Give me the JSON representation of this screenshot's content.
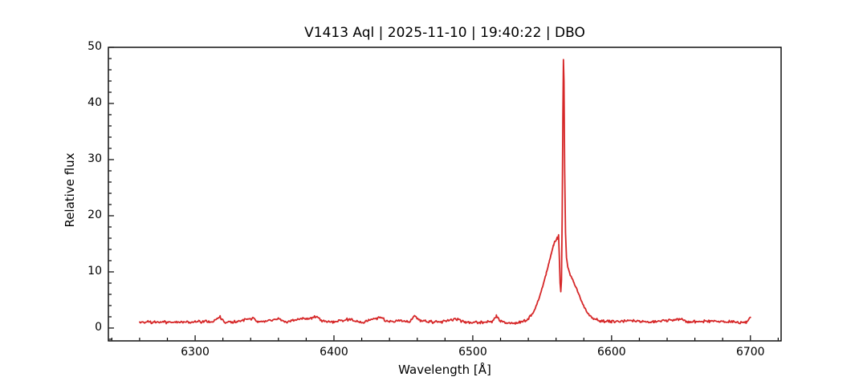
{
  "chart_data": {
    "type": "line",
    "title": "V1413 Aql | 2025-11-10 | 19:40:22 | DBO",
    "title_parts": {
      "object": "V1413 Aql",
      "date": "2025-11-10",
      "time": "19:40:22",
      "observatory": "DBO"
    },
    "xlabel": "Wavelength [Å]",
    "ylabel": "Relative flux",
    "xlim": [
      6237.5,
      6722.1
    ],
    "ylim": [
      -2.29,
      50
    ],
    "x_ticks": [
      6300,
      6400,
      6500,
      6600,
      6700
    ],
    "x_minor_step": 20,
    "y_ticks": [
      0,
      10,
      20,
      30,
      40,
      50
    ],
    "y_minor_step": 2,
    "grid": false,
    "legend": "none",
    "background_color": "#ffffff",
    "axis_color": "#000000",
    "line_color": "#d62728",
    "data_wavelength_range": [
      6260,
      6700
    ],
    "continuum_level": 1.1,
    "noise_amplitude": 0.3,
    "emission_peak": {
      "wavelength": 6565.3,
      "flux": 47.8
    },
    "broad_component_peak": {
      "wavelength": 6560.5,
      "flux": 16.3
    },
    "absorption_dip": {
      "wavelength": 6563.5,
      "flux": 6.4
    },
    "series": [
      {
        "name": "spectrum",
        "sample_step": 0.6,
        "low_noise_region": [
          6560.5,
          6567.5
        ],
        "profile_points": [
          [
            6260,
            1.1
          ],
          [
            6280,
            1.0
          ],
          [
            6300,
            1.1
          ],
          [
            6314,
            1.2
          ],
          [
            6318,
            2.0
          ],
          [
            6321,
            1.1
          ],
          [
            6330,
            1.1
          ],
          [
            6342,
            1.8
          ],
          [
            6345,
            1.1
          ],
          [
            6355,
            1.3
          ],
          [
            6360,
            1.7
          ],
          [
            6365,
            1.1
          ],
          [
            6384,
            1.8
          ],
          [
            6388,
            2.1
          ],
          [
            6391,
            1.2
          ],
          [
            6400,
            1.1
          ],
          [
            6410,
            1.5
          ],
          [
            6420,
            1.0
          ],
          [
            6434,
            2.0
          ],
          [
            6438,
            1.2
          ],
          [
            6455,
            1.2
          ],
          [
            6458,
            2.3
          ],
          [
            6462,
            1.3
          ],
          [
            6475,
            1.0
          ],
          [
            6488,
            1.6
          ],
          [
            6495,
            1.0
          ],
          [
            6505,
            1.0
          ],
          [
            6514,
            1.2
          ],
          [
            6517,
            2.2
          ],
          [
            6520,
            1.1
          ],
          [
            6528,
            0.9
          ],
          [
            6535,
            1.0
          ],
          [
            6539,
            1.4
          ],
          [
            6542,
            2.2
          ],
          [
            6545,
            3.5
          ],
          [
            6548,
            5.5
          ],
          [
            6551,
            8.0
          ],
          [
            6553,
            9.8
          ],
          [
            6555,
            11.8
          ],
          [
            6556.5,
            13.2
          ],
          [
            6558,
            14.6
          ],
          [
            6559,
            15.3
          ],
          [
            6560,
            15.6
          ],
          [
            6560.8,
            16.2
          ],
          [
            6561.3,
            15.8
          ],
          [
            6561.8,
            16.6
          ],
          [
            6562.3,
            13.0
          ],
          [
            6562.9,
            8.0
          ],
          [
            6563.4,
            6.5
          ],
          [
            6563.9,
            8.5
          ],
          [
            6564.4,
            20.0
          ],
          [
            6564.9,
            38.0
          ],
          [
            6565.3,
            47.8
          ],
          [
            6565.7,
            44.0
          ],
          [
            6566.2,
            28.0
          ],
          [
            6566.8,
            17.0
          ],
          [
            6567.5,
            12.5
          ],
          [
            6568.5,
            10.8
          ],
          [
            6570,
            9.6
          ],
          [
            6571.5,
            8.8
          ],
          [
            6573,
            8.0
          ],
          [
            6574.5,
            7.2
          ],
          [
            6576,
            6.2
          ],
          [
            6578,
            4.9
          ],
          [
            6580,
            3.9
          ],
          [
            6582,
            3.0
          ],
          [
            6584,
            2.3
          ],
          [
            6586,
            1.8
          ],
          [
            6589,
            1.5
          ],
          [
            6592,
            1.3
          ],
          [
            6596,
            1.2
          ],
          [
            6600,
            1.15
          ],
          [
            6615,
            1.3
          ],
          [
            6630,
            1.1
          ],
          [
            6648,
            1.6
          ],
          [
            6655,
            1.1
          ],
          [
            6670,
            1.2
          ],
          [
            6685,
            1.1
          ],
          [
            6697,
            1.0
          ],
          [
            6700,
            2.0
          ]
        ]
      }
    ]
  }
}
